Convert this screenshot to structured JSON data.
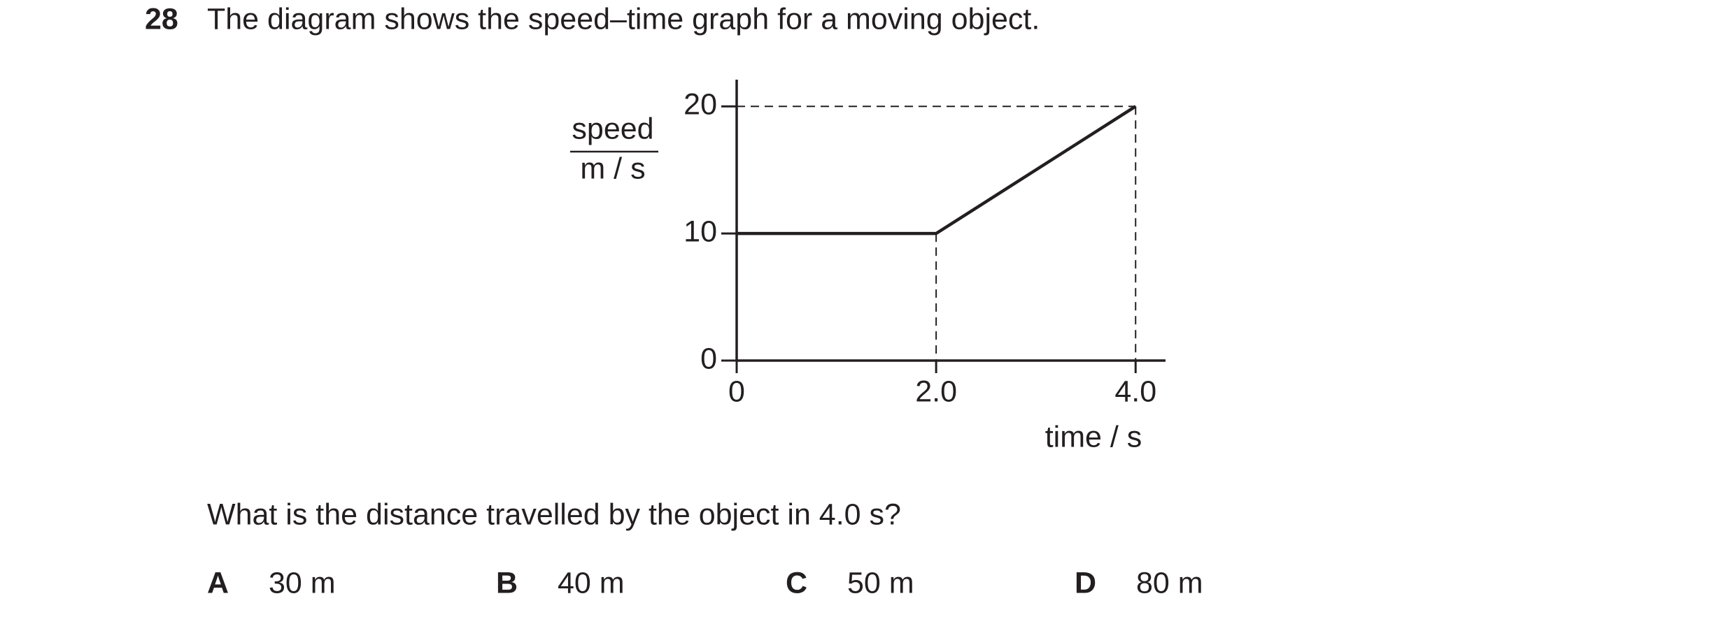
{
  "question": {
    "number": "28",
    "text": "The diagram shows the speed–time graph for a moving object.",
    "prompt": "What is the distance travelled by the object in 4.0 s?",
    "options": [
      {
        "letter": "A",
        "text": "30 m"
      },
      {
        "letter": "B",
        "text": "40 m"
      },
      {
        "letter": "C",
        "text": "50 m"
      },
      {
        "letter": "D",
        "text": "80 m"
      }
    ]
  },
  "chart_data": {
    "type": "line",
    "y_label": "speed",
    "y_unit": "m / s",
    "x_label": "time / s",
    "x": [
      0,
      2,
      4
    ],
    "values": [
      10,
      10,
      20
    ],
    "color": "#231f20",
    "xlim": [
      0,
      4.3
    ],
    "ylim": [
      0,
      22.1
    ],
    "xticks": [
      0,
      {
        "value": 2,
        "label": "2.0"
      },
      {
        "value": 4,
        "label": "4.0"
      }
    ],
    "yticks": [
      0,
      10,
      20
    ]
  }
}
